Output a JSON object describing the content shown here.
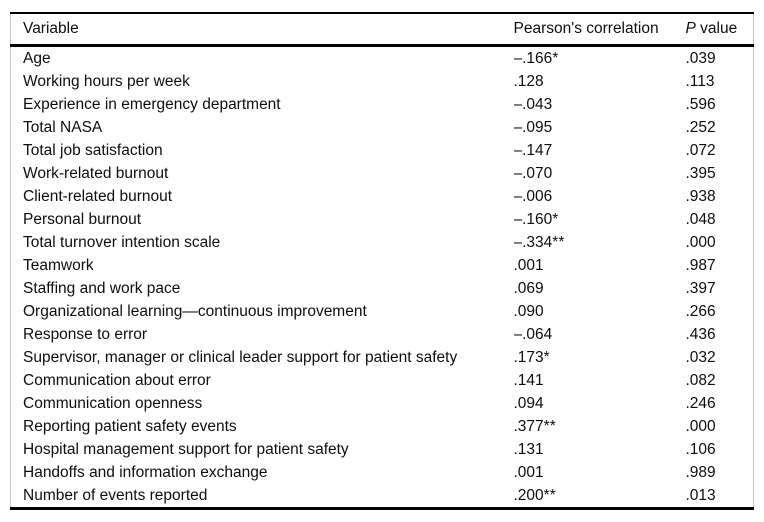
{
  "colors": {
    "background": "#ffffff",
    "text": "#0e0e0e",
    "rule": "#000000",
    "side_border": "#c9c9c9"
  },
  "table": {
    "columns": {
      "variable_label": "Variable",
      "pearson_label": "Pearson's correlation",
      "p_label_italic": "P",
      "p_label_rest": " value"
    },
    "rows": [
      {
        "variable": "Age",
        "pearson": "–.166*",
        "p_value": ".039"
      },
      {
        "variable": "Working hours per week",
        "pearson": ".128",
        "p_value": ".113"
      },
      {
        "variable": "Experience in emergency department",
        "pearson": "–.043",
        "p_value": ".596"
      },
      {
        "variable": "Total NASA",
        "pearson": "–.095",
        "p_value": ".252"
      },
      {
        "variable": "Total job satisfaction",
        "pearson": "–.147",
        "p_value": ".072"
      },
      {
        "variable": "Work-related burnout",
        "pearson": "–.070",
        "p_value": ".395"
      },
      {
        "variable": "Client-related burnout",
        "pearson": "–.006",
        "p_value": ".938"
      },
      {
        "variable": "Personal burnout",
        "pearson": "–.160*",
        "p_value": ".048"
      },
      {
        "variable": "Total turnover intention scale",
        "pearson": "–.334**",
        "p_value": ".000"
      },
      {
        "variable": "Teamwork",
        "pearson": ".001",
        "p_value": ".987"
      },
      {
        "variable": "Staffing and work pace",
        "pearson": ".069",
        "p_value": ".397"
      },
      {
        "variable": "Organizational learning—continuous improvement",
        "pearson": ".090",
        "p_value": ".266"
      },
      {
        "variable": "Response to error",
        "pearson": "–.064",
        "p_value": ".436"
      },
      {
        "variable": "Supervisor, manager or clinical leader support for patient safety",
        "pearson": ".173*",
        "p_value": ".032"
      },
      {
        "variable": "Communication about error",
        "pearson": ".141",
        "p_value": ".082"
      },
      {
        "variable": "Communication openness",
        "pearson": ".094",
        "p_value": ".246"
      },
      {
        "variable": "Reporting patient safety events",
        "pearson": ".377**",
        "p_value": ".000"
      },
      {
        "variable": "Hospital management support for patient safety",
        "pearson": ".131",
        "p_value": ".106"
      },
      {
        "variable": "Handoffs and information exchange",
        "pearson": ".001",
        "p_value": ".989"
      },
      {
        "variable": "Number of events reported",
        "pearson": ".200**",
        "p_value": ".013"
      }
    ]
  }
}
